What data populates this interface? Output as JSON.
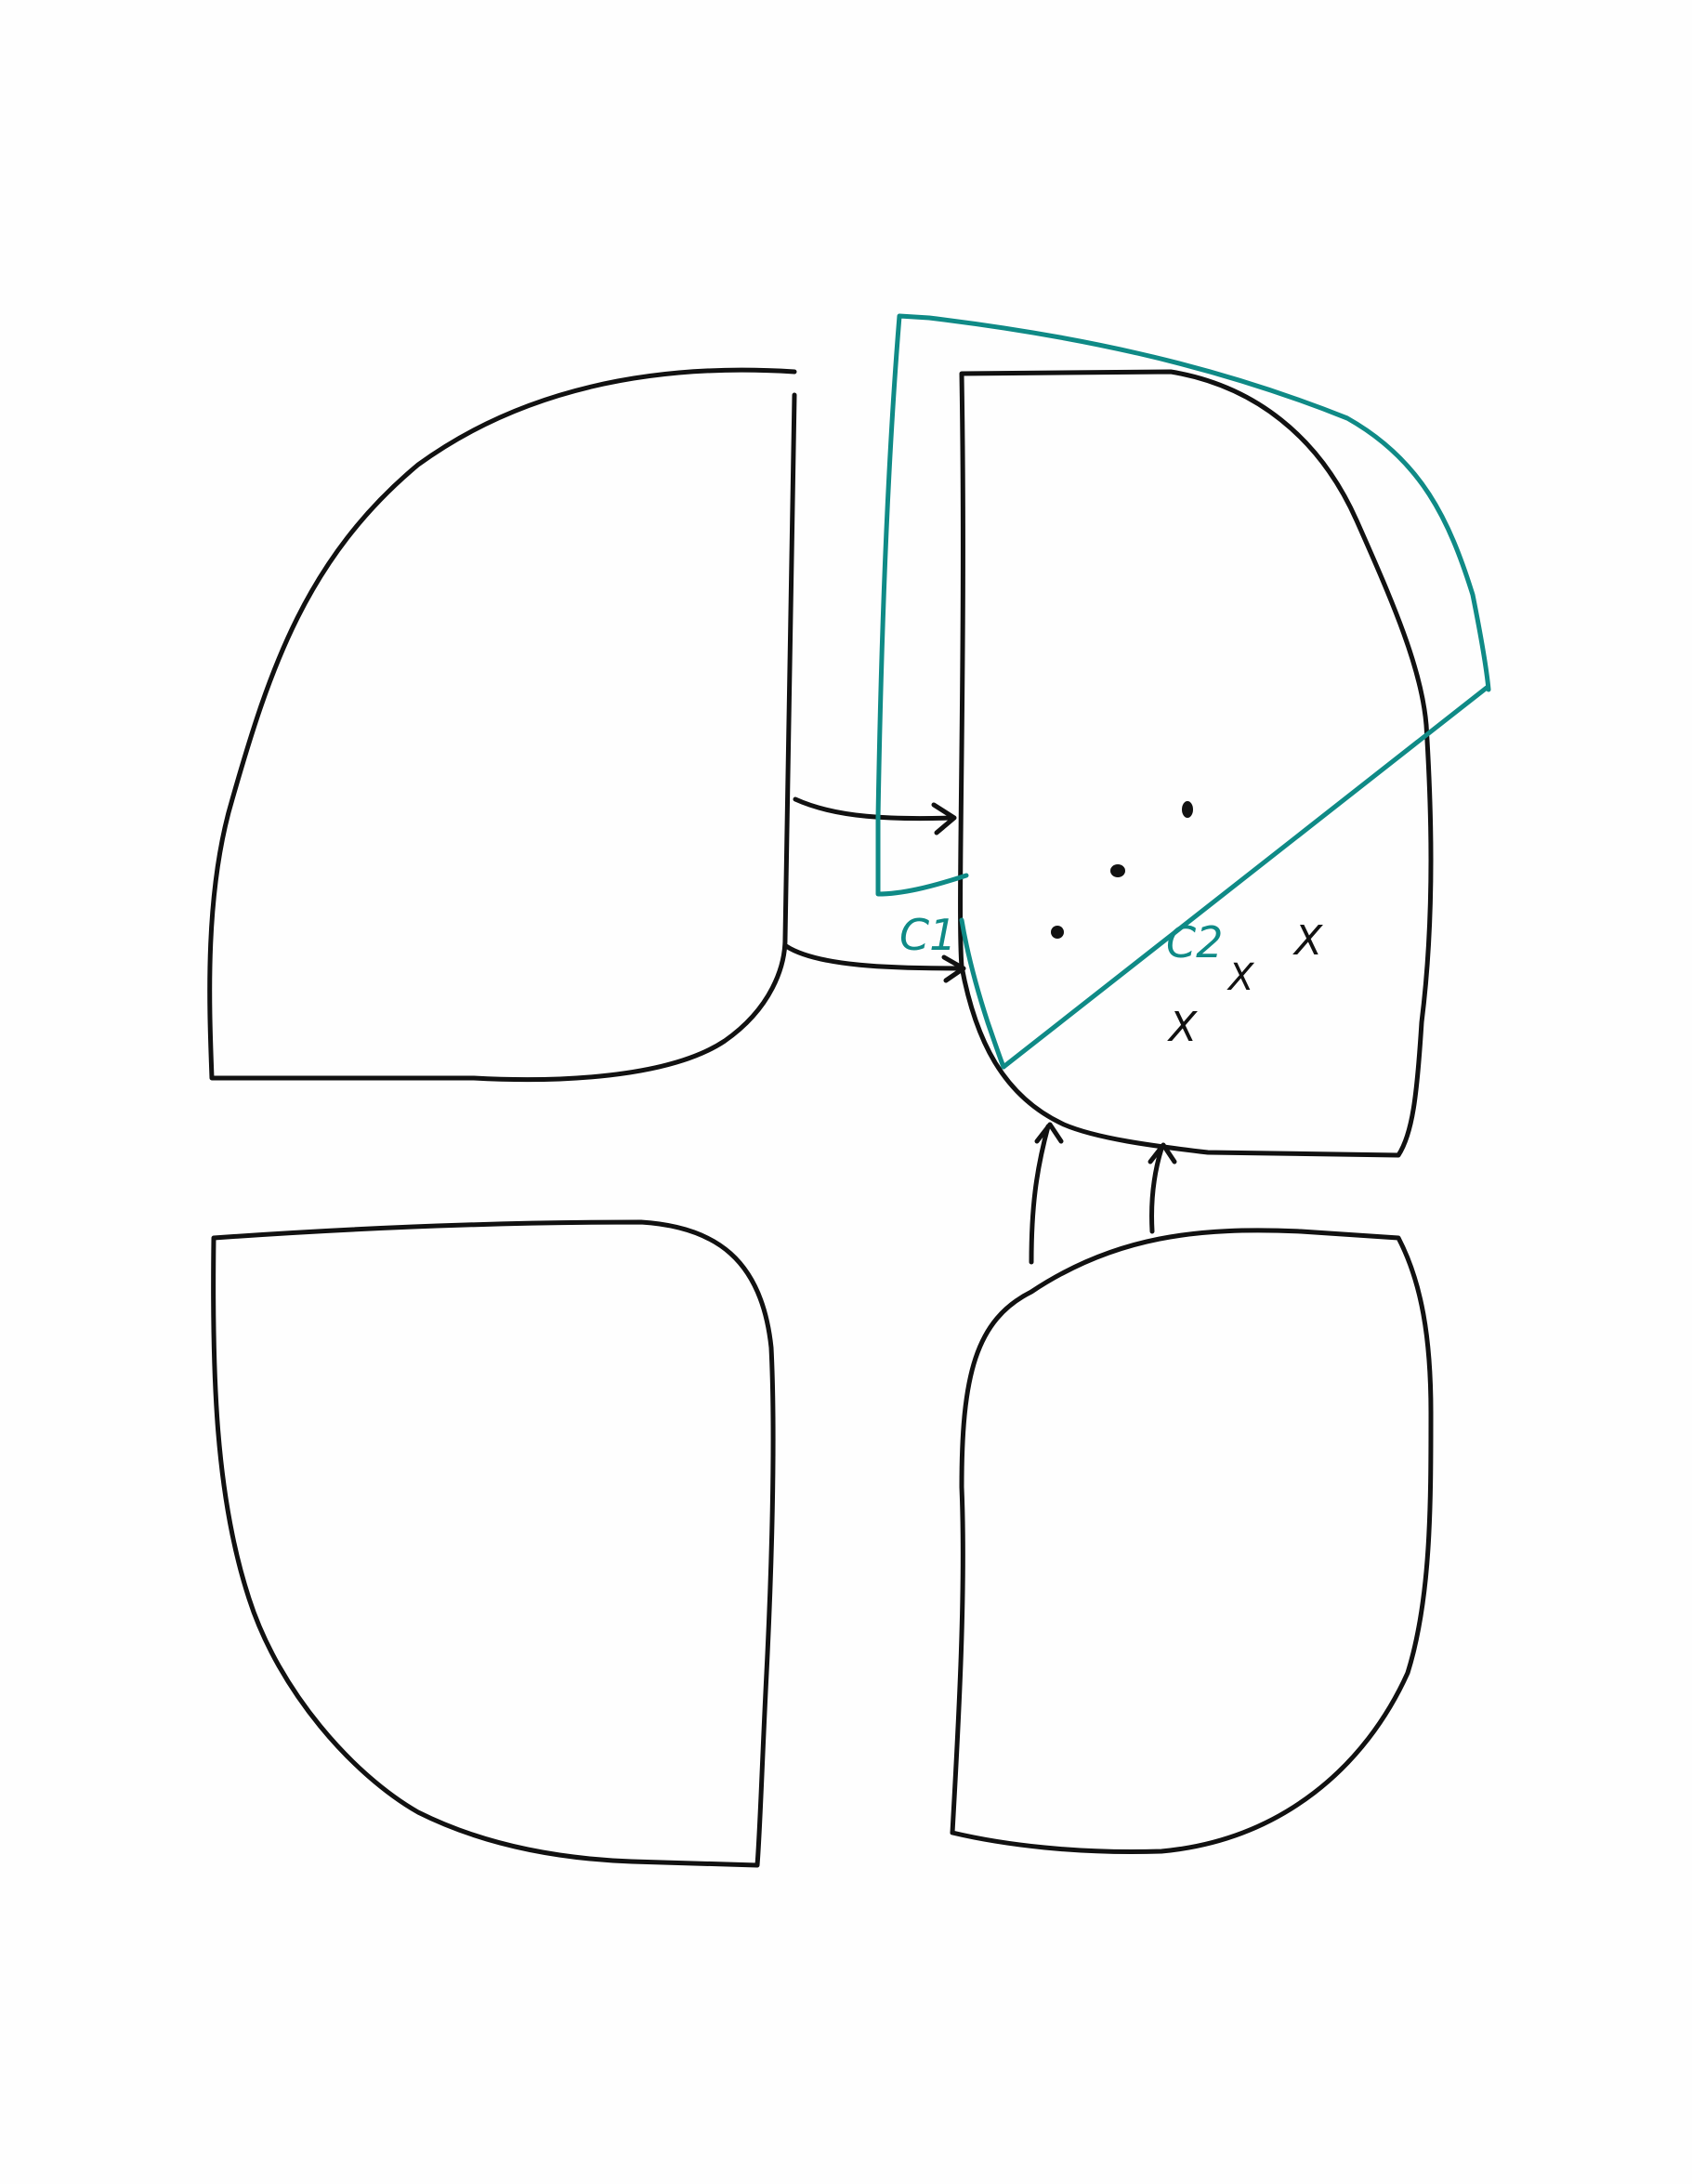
{
  "colors": {
    "background": "#fefefe",
    "ink": "#111111",
    "accent": "#0f8a86"
  },
  "regions": [
    {
      "id": "top-left"
    },
    {
      "id": "top-right"
    },
    {
      "id": "bottom-left"
    },
    {
      "id": "bottom-right"
    }
  ],
  "labels": {
    "c1": "C1",
    "c2": "C2"
  },
  "markers": {
    "x_symbol": "X"
  }
}
